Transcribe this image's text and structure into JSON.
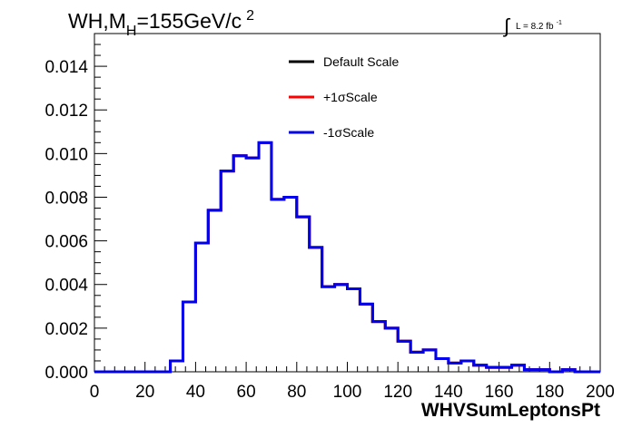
{
  "header": {
    "title_main": "WH,M",
    "title_sub": "H",
    "title_rest": "=155GeV/c",
    "title_sup": "2",
    "lumi_integral": "∫",
    "lumi_text": "L = 8.2 fb",
    "lumi_sup": "-1"
  },
  "chart_data": {
    "type": "line",
    "xlabel": "WHVSumLeptonsPt",
    "ylabel": "",
    "xlim": [
      0,
      200
    ],
    "ylim": [
      0,
      0.0155
    ],
    "x_ticks": [
      "0",
      "20",
      "40",
      "60",
      "80",
      "100",
      "120",
      "140",
      "160",
      "180",
      "200"
    ],
    "y_ticks": [
      "0.000",
      "0.002",
      "0.004",
      "0.006",
      "0.008",
      "0.010",
      "0.012",
      "0.014"
    ],
    "x_tick_values": [
      0,
      20,
      40,
      60,
      80,
      100,
      120,
      140,
      160,
      180,
      200
    ],
    "y_tick_values": [
      0,
      0.002,
      0.004,
      0.006,
      0.008,
      0.01,
      0.012,
      0.014
    ],
    "bin_edges": [
      0,
      5,
      10,
      15,
      20,
      25,
      30,
      35,
      40,
      45,
      50,
      55,
      60,
      65,
      70,
      75,
      80,
      85,
      90,
      95,
      100,
      105,
      110,
      115,
      120,
      125,
      130,
      135,
      140,
      145,
      150,
      155,
      160,
      165,
      170,
      175,
      180,
      185,
      190,
      195,
      200
    ],
    "legend_position": "top-center",
    "series": [
      {
        "name": "Default Scale",
        "color": "#000000",
        "values": [
          0,
          0,
          0,
          0,
          0,
          0,
          0.0005,
          0.0032,
          0.0059,
          0.0074,
          0.0092,
          0.0099,
          0.0098,
          0.0105,
          0.0079,
          0.008,
          0.0071,
          0.0057,
          0.0039,
          0.004,
          0.0038,
          0.0031,
          0.0023,
          0.002,
          0.0014,
          0.0009,
          0.001,
          0.0006,
          0.0004,
          0.0005,
          0.0003,
          0.0002,
          0.0002,
          0.0003,
          0.0001,
          0.0001,
          0,
          0.0001,
          0,
          0,
          0
        ]
      },
      {
        "name": "+1σScale",
        "color": "#ff0000",
        "values": [
          0,
          0,
          0,
          0,
          0,
          0,
          0.0005,
          0.0032,
          0.0059,
          0.0074,
          0.0092,
          0.0099,
          0.0098,
          0.0105,
          0.0079,
          0.008,
          0.0071,
          0.0057,
          0.0039,
          0.004,
          0.0038,
          0.0031,
          0.0023,
          0.002,
          0.0014,
          0.0009,
          0.001,
          0.0006,
          0.0004,
          0.0005,
          0.0003,
          0.0002,
          0.0002,
          0.0003,
          0.0001,
          0.0001,
          0,
          0.0001,
          0,
          0,
          0
        ]
      },
      {
        "name": "-1σScale",
        "color": "#0000ee",
        "values": [
          0,
          0,
          0,
          0,
          0,
          0,
          0.0005,
          0.0032,
          0.0059,
          0.0074,
          0.0092,
          0.0099,
          0.0098,
          0.0105,
          0.0079,
          0.008,
          0.0071,
          0.0057,
          0.0039,
          0.004,
          0.0038,
          0.0031,
          0.0023,
          0.002,
          0.0014,
          0.0009,
          0.001,
          0.0006,
          0.0004,
          0.0005,
          0.0003,
          0.0002,
          0.0002,
          0.0003,
          0.0001,
          0.0001,
          0,
          0.0001,
          0,
          0,
          0
        ]
      }
    ]
  }
}
